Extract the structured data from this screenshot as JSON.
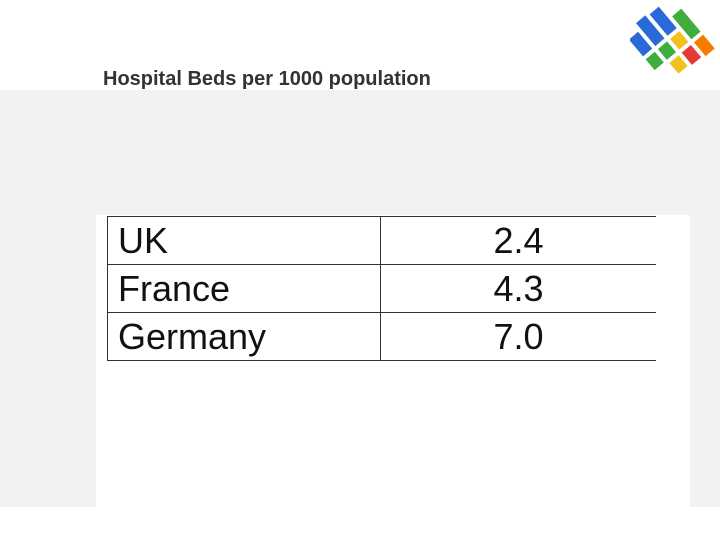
{
  "title": "Hospital Beds per 1000 population",
  "table": {
    "rows": [
      [
        "UK",
        "2.4"
      ],
      [
        "France",
        "4.3"
      ],
      [
        "Germany",
        "7.0"
      ]
    ]
  }
}
